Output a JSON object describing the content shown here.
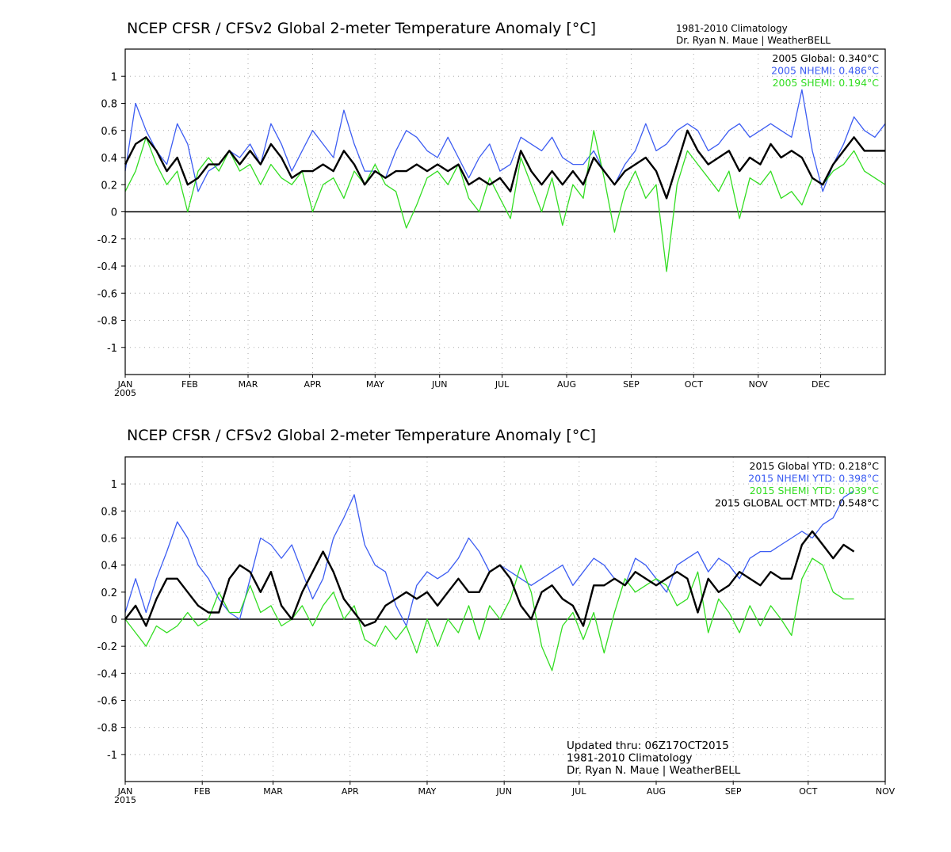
{
  "colors": {
    "global": "#000000",
    "nhemi": "#3d5df2",
    "shemi": "#33dd22",
    "grid": "#aaaaaa"
  },
  "chart_data": [
    {
      "type": "line",
      "title": "NCEP CFSR / CFSv2 Global 2-meter Temperature Anomaly [°C]",
      "credit_line1": "1981-2010 Climatology",
      "credit_line2": "Dr. Ryan N. Maue | WeatherBELL",
      "year_label": "2005",
      "ylim": [
        -1.2,
        1.2
      ],
      "yticks": [
        "1",
        "0.8",
        "0.6",
        "0.4",
        "0.2",
        "0",
        "-0.2",
        "-0.4",
        "-0.6",
        "-0.8",
        "-1"
      ],
      "ytick_values": [
        1,
        0.8,
        0.6,
        0.4,
        0.2,
        0,
        -0.2,
        -0.4,
        -0.6,
        -0.8,
        -1
      ],
      "xlim": [
        0,
        365
      ],
      "month_labels": [
        "JAN",
        "FEB",
        "MAR",
        "APR",
        "MAY",
        "JUN",
        "JUL",
        "AUG",
        "SEP",
        "OCT",
        "NOV",
        "DEC"
      ],
      "month_days": [
        0,
        31,
        59,
        90,
        120,
        151,
        181,
        212,
        243,
        273,
        304,
        334
      ],
      "legend": [
        {
          "text": "2005 Global: 0.340°C",
          "series": "global"
        },
        {
          "text": "2005 NHEMI: 0.486°C",
          "series": "nhemi"
        },
        {
          "text": "2005 SHEMI: 0.194°C",
          "series": "shemi"
        }
      ],
      "annotation": [],
      "series": [
        {
          "name": "nhemi",
          "x": [
            0,
            5,
            10,
            15,
            20,
            25,
            30,
            35,
            40,
            45,
            50,
            55,
            60,
            65,
            70,
            75,
            80,
            85,
            90,
            95,
            100,
            105,
            110,
            115,
            120,
            125,
            130,
            135,
            140,
            145,
            150,
            155,
            160,
            165,
            170,
            175,
            180,
            185,
            190,
            195,
            200,
            205,
            210,
            215,
            220,
            225,
            230,
            235,
            240,
            245,
            250,
            255,
            260,
            265,
            270,
            275,
            280,
            285,
            290,
            295,
            300,
            305,
            310,
            315,
            320,
            325,
            330,
            335,
            340,
            345,
            350,
            355,
            360,
            365
          ],
          "y": [
            0.3,
            0.8,
            0.6,
            0.45,
            0.35,
            0.65,
            0.5,
            0.15,
            0.3,
            0.35,
            0.45,
            0.4,
            0.5,
            0.35,
            0.65,
            0.5,
            0.3,
            0.45,
            0.6,
            0.5,
            0.4,
            0.75,
            0.5,
            0.3,
            0.3,
            0.25,
            0.45,
            0.6,
            0.55,
            0.45,
            0.4,
            0.55,
            0.4,
            0.25,
            0.4,
            0.5,
            0.3,
            0.35,
            0.55,
            0.5,
            0.45,
            0.55,
            0.4,
            0.35,
            0.35,
            0.45,
            0.3,
            0.2,
            0.35,
            0.45,
            0.65,
            0.45,
            0.5,
            0.6,
            0.65,
            0.6,
            0.45,
            0.5,
            0.6,
            0.65,
            0.55,
            0.6,
            0.65,
            0.6,
            0.55,
            0.9,
            0.45,
            0.15,
            0.35,
            0.5,
            0.7,
            0.6,
            0.55,
            0.65
          ]
        },
        {
          "name": "shemi",
          "x": [
            0,
            5,
            10,
            15,
            20,
            25,
            30,
            35,
            40,
            45,
            50,
            55,
            60,
            65,
            70,
            75,
            80,
            85,
            90,
            95,
            100,
            105,
            110,
            115,
            120,
            125,
            130,
            135,
            140,
            145,
            150,
            155,
            160,
            165,
            170,
            175,
            180,
            185,
            190,
            195,
            200,
            205,
            210,
            215,
            220,
            225,
            230,
            235,
            240,
            245,
            250,
            255,
            260,
            265,
            270,
            275,
            280,
            285,
            290,
            295,
            300,
            305,
            310,
            315,
            320,
            325,
            330,
            335,
            340,
            345,
            350,
            355,
            360,
            365
          ],
          "y": [
            0.15,
            0.3,
            0.55,
            0.35,
            0.2,
            0.3,
            0.0,
            0.3,
            0.4,
            0.3,
            0.45,
            0.3,
            0.35,
            0.2,
            0.35,
            0.25,
            0.2,
            0.3,
            0.0,
            0.2,
            0.25,
            0.1,
            0.3,
            0.2,
            0.35,
            0.2,
            0.15,
            -0.12,
            0.05,
            0.25,
            0.3,
            0.2,
            0.35,
            0.1,
            0.0,
            0.25,
            0.1,
            -0.05,
            0.4,
            0.2,
            0.0,
            0.25,
            -0.1,
            0.2,
            0.1,
            0.6,
            0.25,
            -0.15,
            0.15,
            0.3,
            0.1,
            0.2,
            -0.44,
            0.2,
            0.45,
            0.35,
            0.25,
            0.15,
            0.3,
            -0.05,
            0.25,
            0.2,
            0.3,
            0.1,
            0.15,
            0.05,
            0.25,
            0.2,
            0.3,
            0.35,
            0.45,
            0.3,
            0.25,
            0.2
          ]
        },
        {
          "name": "global",
          "x": [
            0,
            5,
            10,
            15,
            20,
            25,
            30,
            35,
            40,
            45,
            50,
            55,
            60,
            65,
            70,
            75,
            80,
            85,
            90,
            95,
            100,
            105,
            110,
            115,
            120,
            125,
            130,
            135,
            140,
            145,
            150,
            155,
            160,
            165,
            170,
            175,
            180,
            185,
            190,
            195,
            200,
            205,
            210,
            215,
            220,
            225,
            230,
            235,
            240,
            245,
            250,
            255,
            260,
            265,
            270,
            275,
            280,
            285,
            290,
            295,
            300,
            305,
            310,
            315,
            320,
            325,
            330,
            335,
            340,
            345,
            350,
            355,
            360,
            365
          ],
          "y": [
            0.35,
            0.5,
            0.55,
            0.45,
            0.3,
            0.4,
            0.2,
            0.25,
            0.35,
            0.35,
            0.45,
            0.35,
            0.45,
            0.35,
            0.5,
            0.4,
            0.25,
            0.3,
            0.3,
            0.35,
            0.3,
            0.45,
            0.35,
            0.2,
            0.3,
            0.25,
            0.3,
            0.3,
            0.35,
            0.3,
            0.35,
            0.3,
            0.35,
            0.2,
            0.25,
            0.2,
            0.25,
            0.15,
            0.45,
            0.3,
            0.2,
            0.3,
            0.2,
            0.3,
            0.2,
            0.4,
            0.3,
            0.2,
            0.3,
            0.35,
            0.4,
            0.3,
            0.1,
            0.35,
            0.6,
            0.45,
            0.35,
            0.4,
            0.45,
            0.3,
            0.4,
            0.35,
            0.5,
            0.4,
            0.45,
            0.4,
            0.25,
            0.2,
            0.35,
            0.45,
            0.55,
            0.45,
            0.45,
            0.45
          ]
        }
      ]
    },
    {
      "type": "line",
      "title": "NCEP CFSR / CFSv2 Global 2-meter Temperature Anomaly [°C]",
      "credit_line1": "",
      "credit_line2": "",
      "year_label": "2015",
      "ylim": [
        -1.2,
        1.2
      ],
      "yticks": [
        "1",
        "0.8",
        "0.6",
        "0.4",
        "0.2",
        "0",
        "-0.2",
        "-0.4",
        "-0.6",
        "-0.8",
        "-1"
      ],
      "ytick_values": [
        1,
        0.8,
        0.6,
        0.4,
        0.2,
        0,
        -0.2,
        -0.4,
        -0.6,
        -0.8,
        -1
      ],
      "xlim": [
        0,
        365
      ],
      "month_labels": [
        "JAN",
        "FEB",
        "MAR",
        "APR",
        "MAY",
        "JUN",
        "JUL",
        "AUG",
        "SEP",
        "OCT",
        "NOV"
      ],
      "month_days": [
        0,
        37,
        71,
        108,
        145,
        182,
        218,
        255,
        292,
        328,
        365
      ],
      "legend": [
        {
          "text": "2015 Global YTD: 0.218°C",
          "series": "global"
        },
        {
          "text": "2015 NHEMI YTD: 0.398°C",
          "series": "nhemi"
        },
        {
          "text": "2015 SHEMI YTD: 0.039°C",
          "series": "shemi"
        },
        {
          "text": "2015 GLOBAL OCT MTD: 0.548°C",
          "series": "global"
        }
      ],
      "annotation": [
        "Updated thru: 06Z17OCT2015",
        "1981-2010 Climatology",
        "Dr. Ryan N. Maue | WeatherBELL"
      ],
      "series": [
        {
          "name": "nhemi",
          "x": [
            0,
            5,
            10,
            15,
            20,
            25,
            30,
            35,
            40,
            45,
            50,
            55,
            60,
            65,
            70,
            75,
            80,
            85,
            90,
            95,
            100,
            105,
            110,
            115,
            120,
            125,
            130,
            135,
            140,
            145,
            150,
            155,
            160,
            165,
            170,
            175,
            180,
            185,
            190,
            195,
            200,
            205,
            210,
            215,
            220,
            225,
            230,
            235,
            240,
            245,
            250,
            255,
            260,
            265,
            270,
            275,
            280,
            285,
            290,
            295,
            300,
            305,
            310,
            315,
            320,
            325,
            330,
            335,
            340,
            345,
            350
          ],
          "y": [
            0.05,
            0.3,
            0.05,
            0.3,
            0.5,
            0.72,
            0.6,
            0.4,
            0.3,
            0.15,
            0.05,
            0.0,
            0.3,
            0.6,
            0.55,
            0.45,
            0.55,
            0.35,
            0.15,
            0.3,
            0.6,
            0.75,
            0.92,
            0.55,
            0.4,
            0.35,
            0.1,
            -0.05,
            0.25,
            0.35,
            0.3,
            0.35,
            0.45,
            0.6,
            0.5,
            0.35,
            0.4,
            0.35,
            0.3,
            0.25,
            0.3,
            0.35,
            0.4,
            0.25,
            0.35,
            0.45,
            0.4,
            0.3,
            0.25,
            0.45,
            0.4,
            0.3,
            0.2,
            0.4,
            0.45,
            0.5,
            0.35,
            0.45,
            0.4,
            0.3,
            0.45,
            0.5,
            0.5,
            0.55,
            0.6,
            0.65,
            0.6,
            0.7,
            0.75,
            0.9,
            0.95
          ]
        },
        {
          "name": "shemi",
          "x": [
            0,
            5,
            10,
            15,
            20,
            25,
            30,
            35,
            40,
            45,
            50,
            55,
            60,
            65,
            70,
            75,
            80,
            85,
            90,
            95,
            100,
            105,
            110,
            115,
            120,
            125,
            130,
            135,
            140,
            145,
            150,
            155,
            160,
            165,
            170,
            175,
            180,
            185,
            190,
            195,
            200,
            205,
            210,
            215,
            220,
            225,
            230,
            235,
            240,
            245,
            250,
            255,
            260,
            265,
            270,
            275,
            280,
            285,
            290,
            295,
            300,
            305,
            310,
            315,
            320,
            325,
            330,
            335,
            340,
            345,
            350
          ],
          "y": [
            0.0,
            -0.1,
            -0.2,
            -0.05,
            -0.1,
            -0.05,
            0.05,
            -0.05,
            0.0,
            0.2,
            0.05,
            0.05,
            0.25,
            0.05,
            0.1,
            -0.05,
            0.0,
            0.1,
            -0.05,
            0.1,
            0.2,
            0.0,
            0.1,
            -0.15,
            -0.2,
            -0.05,
            -0.15,
            -0.05,
            -0.25,
            0.0,
            -0.2,
            0.0,
            -0.1,
            0.1,
            -0.15,
            0.1,
            0.0,
            0.15,
            0.4,
            0.2,
            -0.2,
            -0.38,
            -0.05,
            0.05,
            -0.15,
            0.05,
            -0.25,
            0.05,
            0.3,
            0.2,
            0.25,
            0.3,
            0.25,
            0.1,
            0.15,
            0.35,
            -0.1,
            0.15,
            0.05,
            -0.1,
            0.1,
            -0.05,
            0.1,
            0.0,
            -0.12,
            0.3,
            0.45,
            0.4,
            0.2,
            0.15,
            0.15
          ]
        },
        {
          "name": "global",
          "x": [
            0,
            5,
            10,
            15,
            20,
            25,
            30,
            35,
            40,
            45,
            50,
            55,
            60,
            65,
            70,
            75,
            80,
            85,
            90,
            95,
            100,
            105,
            110,
            115,
            120,
            125,
            130,
            135,
            140,
            145,
            150,
            155,
            160,
            165,
            170,
            175,
            180,
            185,
            190,
            195,
            200,
            205,
            210,
            215,
            220,
            225,
            230,
            235,
            240,
            245,
            250,
            255,
            260,
            265,
            270,
            275,
            280,
            285,
            290,
            295,
            300,
            305,
            310,
            315,
            320,
            325,
            330,
            335,
            340,
            345,
            350
          ],
          "y": [
            0.0,
            0.1,
            -0.05,
            0.15,
            0.3,
            0.3,
            0.2,
            0.1,
            0.05,
            0.05,
            0.3,
            0.4,
            0.35,
            0.2,
            0.35,
            0.1,
            0.0,
            0.2,
            0.35,
            0.5,
            0.35,
            0.15,
            0.05,
            -0.05,
            -0.02,
            0.1,
            0.15,
            0.2,
            0.15,
            0.2,
            0.1,
            0.2,
            0.3,
            0.2,
            0.2,
            0.35,
            0.4,
            0.3,
            0.1,
            0.0,
            0.2,
            0.25,
            0.15,
            0.1,
            -0.05,
            0.25,
            0.25,
            0.3,
            0.25,
            0.35,
            0.3,
            0.25,
            0.3,
            0.35,
            0.3,
            0.05,
            0.3,
            0.2,
            0.25,
            0.35,
            0.3,
            0.25,
            0.35,
            0.3,
            0.3,
            0.55,
            0.65,
            0.55,
            0.45,
            0.55,
            0.5
          ]
        }
      ]
    }
  ]
}
